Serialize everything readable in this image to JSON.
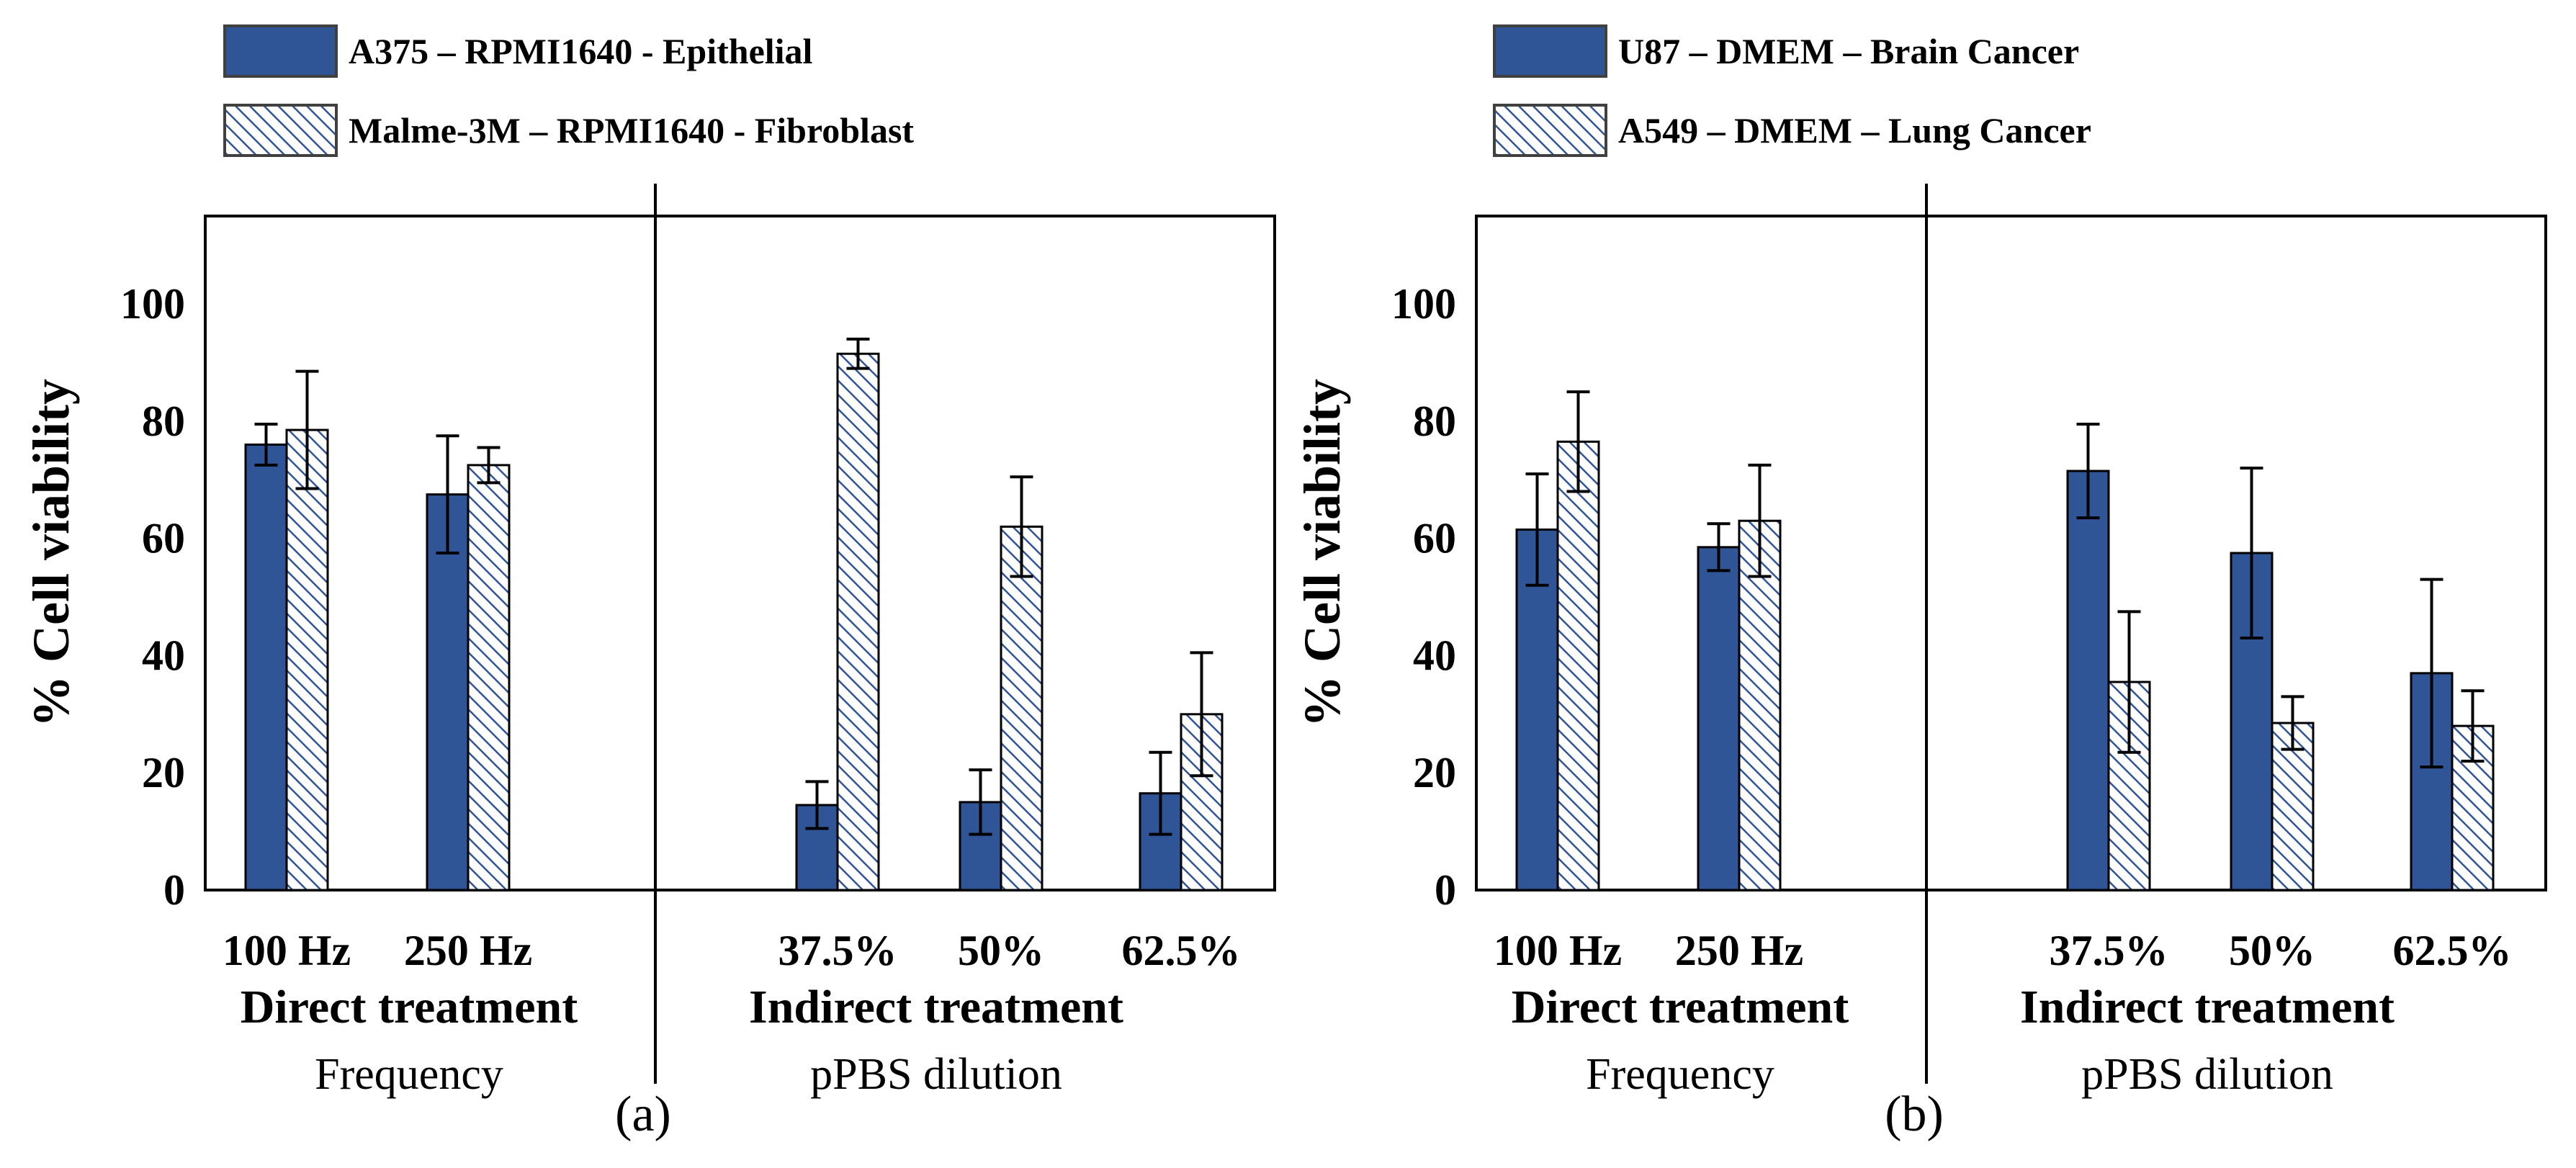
{
  "colors": {
    "solid_fill": "#2f5597",
    "hatch_fill": "#2f5597",
    "hatch_bg": "#ffffff",
    "stroke": "#000000",
    "legend_border": "#404040",
    "text": "#000000"
  },
  "chart_data": [
    {
      "type": "bar",
      "panel_label": "(a)",
      "ylabel": "% Cell viability",
      "ylim": [
        0,
        115
      ],
      "yticks": [
        "0",
        "20",
        "40",
        "60",
        "80",
        "100"
      ],
      "grid": false,
      "legend_position": "top",
      "groups": [
        {
          "name": "Direct treatment",
          "sublabel": "Frequency",
          "categories": [
            "100 Hz",
            "250 Hz"
          ]
        },
        {
          "name": "Indirect treatment",
          "sublabel": "pPBS dilution",
          "categories": [
            "37.5%",
            "50%",
            "62.5%"
          ]
        }
      ],
      "categories": [
        "100 Hz",
        "250 Hz",
        "37.5%",
        "50%",
        "62.5%"
      ],
      "series": [
        {
          "name": "A375 – RPMI1640 - Epithelial",
          "pattern": "solid",
          "values": [
            76,
            67.5,
            14.5,
            15,
            16.5
          ],
          "errors": [
            3.5,
            10,
            4,
            5.5,
            7
          ]
        },
        {
          "name": "Malme-3M – RPMI1640 - Fibroblast",
          "pattern": "hatch",
          "values": [
            78.5,
            72.5,
            91.5,
            62,
            30
          ],
          "errors": [
            10,
            3,
            2.5,
            8.5,
            10.5
          ]
        }
      ]
    },
    {
      "type": "bar",
      "panel_label": "(b)",
      "ylabel": "% Cell viability",
      "ylim": [
        0,
        115
      ],
      "yticks": [
        "0",
        "20",
        "40",
        "60",
        "80",
        "100"
      ],
      "grid": false,
      "legend_position": "top",
      "groups": [
        {
          "name": "Direct treatment",
          "sublabel": "Frequency",
          "categories": [
            "100 Hz",
            "250 Hz"
          ]
        },
        {
          "name": "Indirect treatment",
          "sublabel": "pPBS dilution",
          "categories": [
            "37.5%",
            "50%",
            "62.5%"
          ]
        }
      ],
      "categories": [
        "100 Hz",
        "250 Hz",
        "37.5%",
        "50%",
        "62.5%"
      ],
      "series": [
        {
          "name": "U87 – DMEM – Brain Cancer",
          "pattern": "solid",
          "values": [
            61.5,
            58.5,
            71.5,
            57.5,
            37
          ],
          "errors": [
            9.5,
            4,
            8,
            14.5,
            16
          ]
        },
        {
          "name": "A549 – DMEM – Lung Cancer",
          "pattern": "hatch",
          "values": [
            76.5,
            63,
            35.5,
            28.5,
            28
          ],
          "errors": [
            8.5,
            9.5,
            12,
            4.5,
            6
          ]
        }
      ]
    }
  ]
}
